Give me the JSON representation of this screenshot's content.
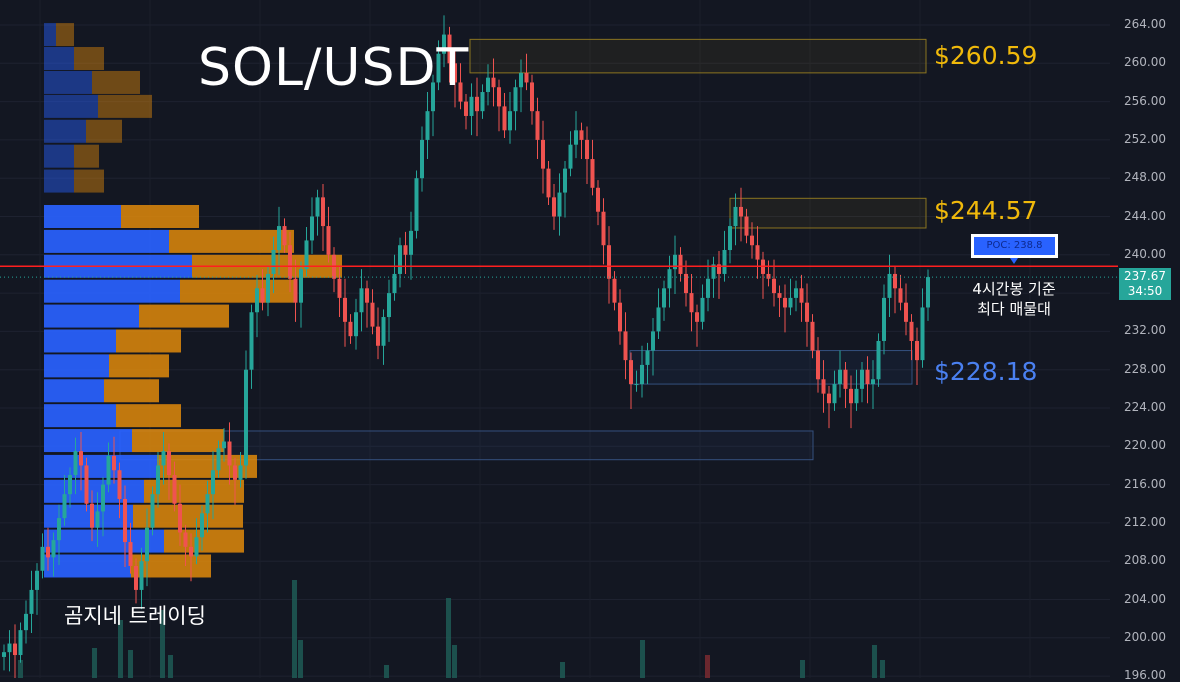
{
  "header": {
    "title": "SOL/USDT"
  },
  "levels": [
    {
      "label": "$260.59",
      "value": 260.59,
      "color": "#f0b90b",
      "zone": [
        259.0,
        262.5
      ]
    },
    {
      "label": "$244.57",
      "value": 244.57,
      "color": "#f0b90b",
      "zone": [
        242.8,
        245.9
      ]
    },
    {
      "label": "$228.18",
      "value": 228.18,
      "color": "#4a80f0",
      "zone": [
        226.5,
        230.0
      ]
    }
  ],
  "poc": {
    "label": "POC: 238.8",
    "value": 238.8,
    "line_color": "#ff1f1f"
  },
  "annotation": {
    "line1": "4시간봉 기준",
    "line2": "최다 매물대"
  },
  "watermark": "곰지네 트레이딩",
  "last_price": {
    "price": "237.67",
    "countdown": "34:50",
    "color": "#26a69a"
  },
  "colors": {
    "up": "#26a69a",
    "down": "#ef5350",
    "bg": "#131722",
    "vp_up": "#2962ff",
    "vp_down": "#e08a0b"
  },
  "chart_data": {
    "type": "candlestick",
    "title": "SOL/USDT",
    "ylim": [
      196,
      264
    ],
    "yticks": [
      "264.00",
      "260.00",
      "256.00",
      "252.00",
      "248.00",
      "244.00",
      "240.00",
      "236.00",
      "232.00",
      "228.00",
      "224.00",
      "220.00",
      "216.00",
      "212.00",
      "208.00",
      "204.00",
      "200.00",
      "196.00"
    ],
    "close": [
      198.5,
      199.4,
      198.2,
      200.8,
      202.5,
      205.0,
      207.0,
      209.5,
      208.4,
      210.2,
      212.5,
      215.0,
      217.0,
      219.5,
      218.0,
      214.0,
      211.5,
      213.2,
      216.0,
      219.0,
      217.5,
      214.5,
      210.0,
      207.5,
      205.0,
      208.0,
      211.5,
      215.0,
      218.0,
      219.5,
      217.0,
      214.0,
      211.0,
      209.5,
      208.5,
      210.5,
      213.0,
      215.0,
      217.5,
      219.8,
      220.5,
      218.0,
      216.5,
      218.0,
      228.0,
      234.0,
      236.5,
      235.0,
      238.0,
      240.5,
      243.0,
      241.0,
      237.5,
      235.0,
      238.5,
      241.5,
      244.0,
      246.0,
      243.0,
      240.0,
      237.5,
      235.5,
      233.0,
      231.5,
      234.0,
      236.5,
      235.0,
      232.5,
      230.5,
      233.5,
      236.0,
      238.0,
      241.0,
      240.0,
      242.5,
      248.0,
      252.0,
      255.0,
      258.0,
      261.0,
      263.0,
      260.0,
      258.0,
      256.0,
      254.5,
      256.5,
      255.0,
      257.0,
      258.5,
      257.5,
      255.5,
      253.0,
      255.0,
      257.5,
      259.0,
      258.0,
      255.0,
      252.0,
      249.0,
      246.0,
      244.0,
      246.5,
      249.0,
      251.5,
      253.0,
      252.0,
      250.0,
      247.0,
      244.5,
      241.0,
      237.5,
      235.0,
      232.0,
      229.0,
      226.5,
      226.5,
      228.5,
      230.0,
      232.0,
      234.5,
      236.5,
      238.5,
      240.0,
      238.0,
      236.0,
      234.0,
      233.0,
      235.5,
      237.5,
      239.0,
      238.0,
      240.5,
      243.0,
      245.0,
      244.0,
      242.0,
      241.0,
      239.5,
      238.0,
      237.5,
      236.0,
      235.5,
      234.5,
      235.5,
      236.5,
      235.0,
      233.0,
      230.0,
      227.0,
      225.5,
      224.5,
      226.5,
      228.0,
      226.0,
      224.5,
      226.0,
      228.0,
      226.5,
      227.0,
      231.0,
      235.5,
      238.0,
      236.5,
      235.0,
      233.0,
      231.0,
      229.0,
      234.5,
      237.67
    ]
  },
  "volume_profile": {
    "bins": [
      {
        "price": 263.0,
        "up": 12,
        "down": 18
      },
      {
        "price": 260.5,
        "up": 30,
        "down": 30
      },
      {
        "price": 258.0,
        "up": 48,
        "down": 48
      },
      {
        "price": 255.5,
        "up": 54,
        "down": 54
      },
      {
        "price": 252.9,
        "up": 42,
        "down": 36
      },
      {
        "price": 250.3,
        "up": 30,
        "down": 25
      },
      {
        "price": 247.7,
        "up": 30,
        "down": 30
      },
      {
        "price": 244.0,
        "up": 77,
        "down": 78
      },
      {
        "price": 241.4,
        "up": 125,
        "down": 125
      },
      {
        "price": 238.8,
        "up": 148,
        "down": 150
      },
      {
        "price": 236.2,
        "up": 136,
        "down": 114
      },
      {
        "price": 233.6,
        "up": 95,
        "down": 90
      },
      {
        "price": 231.0,
        "up": 72,
        "down": 65
      },
      {
        "price": 228.4,
        "up": 65,
        "down": 60
      },
      {
        "price": 225.8,
        "up": 60,
        "down": 55
      },
      {
        "price": 223.2,
        "up": 72,
        "down": 65
      },
      {
        "price": 220.6,
        "up": 88,
        "down": 92
      },
      {
        "price": 217.9,
        "up": 113,
        "down": 100
      },
      {
        "price": 215.3,
        "up": 100,
        "down": 100
      },
      {
        "price": 212.7,
        "up": 89,
        "down": 110
      },
      {
        "price": 210.1,
        "up": 120,
        "down": 80
      },
      {
        "price": 207.5,
        "up": 87,
        "down": 80
      }
    ]
  }
}
